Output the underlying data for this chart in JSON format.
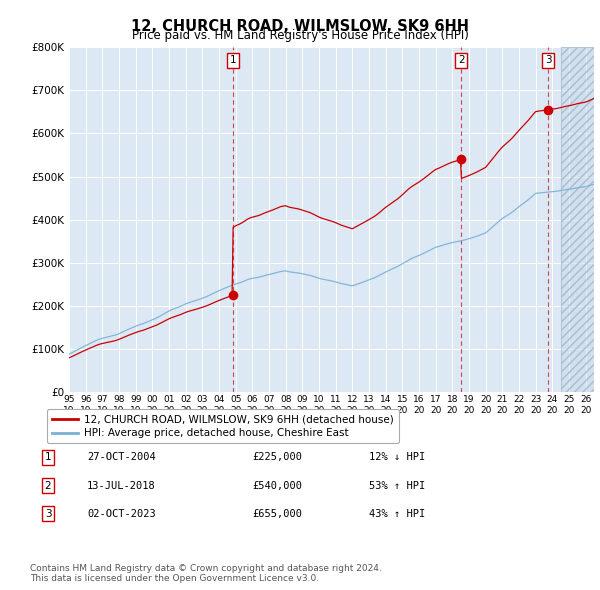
{
  "title": "12, CHURCH ROAD, WILMSLOW, SK9 6HH",
  "subtitle": "Price paid vs. HM Land Registry's House Price Index (HPI)",
  "ylim": [
    0,
    800000
  ],
  "yticks": [
    0,
    100000,
    200000,
    300000,
    400000,
    500000,
    600000,
    700000,
    800000
  ],
  "ytick_labels": [
    "£0",
    "£100K",
    "£200K",
    "£300K",
    "£400K",
    "£500K",
    "£600K",
    "£700K",
    "£800K"
  ],
  "hpi_color": "#7bafd4",
  "price_color": "#cc0000",
  "vline_color": "#cc0000",
  "bg_color": "#dce9f5",
  "grid_color": "#ffffff",
  "hatch_color": "#c0c8d8",
  "legend_label_price": "12, CHURCH ROAD, WILMSLOW, SK9 6HH (detached house)",
  "legend_label_hpi": "HPI: Average price, detached house, Cheshire East",
  "sales": [
    {
      "num": 1,
      "date": "27-OCT-2004",
      "x_year": 2004.82,
      "price": 225000,
      "hpi_pct": "12% ↓ HPI"
    },
    {
      "num": 2,
      "date": "13-JUL-2018",
      "x_year": 2018.53,
      "price": 540000,
      "hpi_pct": "53% ↑ HPI"
    },
    {
      "num": 3,
      "date": "02-OCT-2023",
      "x_year": 2023.75,
      "price": 655000,
      "hpi_pct": "43% ↑ HPI"
    }
  ],
  "footnote1": "Contains HM Land Registry data © Crown copyright and database right 2024.",
  "footnote2": "This data is licensed under the Open Government Licence v3.0.",
  "xmin": 1995.0,
  "xmax": 2026.5,
  "hatch_start": 2024.5,
  "xticks": [
    1995,
    1996,
    1997,
    1998,
    1999,
    2000,
    2001,
    2002,
    2003,
    2004,
    2005,
    2006,
    2007,
    2008,
    2009,
    2010,
    2011,
    2012,
    2013,
    2014,
    2015,
    2016,
    2017,
    2018,
    2019,
    2020,
    2021,
    2022,
    2023,
    2024,
    2025,
    2026
  ]
}
